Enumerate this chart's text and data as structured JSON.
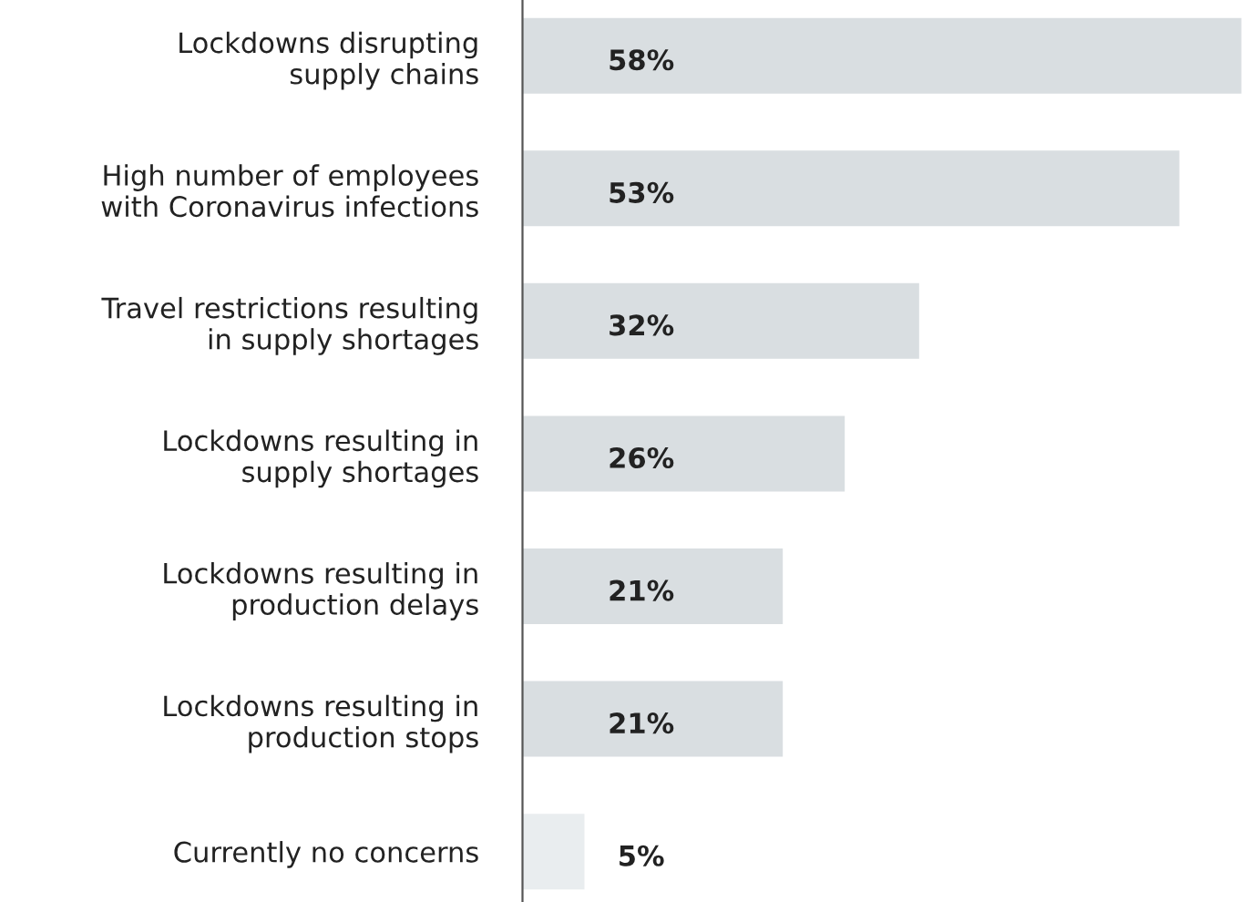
{
  "chart_data": {
    "type": "bar",
    "orientation": "horizontal",
    "categories": [
      "Lockdowns disrupting\nsupply chains",
      "High number of employees\nwith Coronavirus infections",
      "Travel restrictions resulting\nin supply shortages",
      "Lockdowns resulting in\nsupply shortages",
      "Lockdowns resulting in\nproduction delays",
      "Lockdowns resulting in\nproduction stops",
      "Currently no concerns"
    ],
    "values": [
      58,
      53,
      32,
      26,
      21,
      21,
      5
    ],
    "value_labels": [
      "58%",
      "53%",
      "32%",
      "26%",
      "21%",
      "21%",
      "5%"
    ],
    "colors": [
      "#d9dee1",
      "#d9dee1",
      "#d9dee1",
      "#d9dee1",
      "#d9dee1",
      "#d9dee1",
      "#e9edef"
    ],
    "grid": false,
    "legend": false,
    "tick_labels": "y"
  }
}
